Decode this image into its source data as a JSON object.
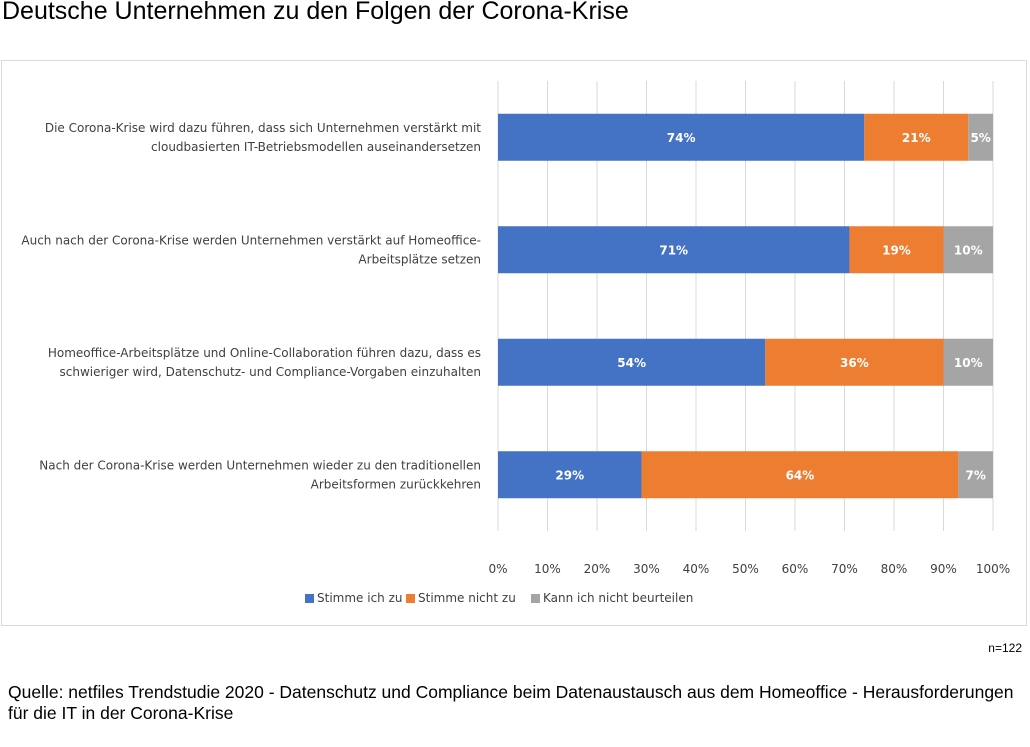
{
  "title": "Deutsche Unternehmen zu den Folgen der Corona-Krise",
  "note": "n=122",
  "source": "Quelle: netfiles Trendstudie 2020 - Datenschutz und Compliance beim Datenaustausch aus dem Homeoffice - Herausforderungen für die IT in der Corona-Krise",
  "chart_data": {
    "type": "bar",
    "orientation": "horizontal",
    "stacked": "percent",
    "categories": [
      [
        "Die Corona-Krise wird dazu führen, dass sich Unternehmen verstärkt mit",
        "cloudbasierten IT-Betriebsmodellen auseinandersetzen"
      ],
      [
        "Auch nach der Corona-Krise werden Unternehmen verstärkt auf Homeoffice-",
        "Arbeitsplätze setzen"
      ],
      [
        "Homeoffice-Arbeitsplätze und Online-Collaboration führen dazu, dass es",
        "schwieriger wird, Datenschutz- und Compliance-Vorgaben einzuhalten"
      ],
      [
        "Nach der Corona-Krise werden Unternehmen wieder zu den traditionellen",
        "Arbeitsformen zurückkehren"
      ]
    ],
    "series": [
      {
        "name": "Stimme ich zu",
        "color": "#4472c4",
        "values": [
          74,
          71,
          54,
          29
        ]
      },
      {
        "name": "Stimme nicht zu",
        "color": "#ed7d31",
        "values": [
          21,
          19,
          36,
          64
        ]
      },
      {
        "name": "Kann ich nicht beurteilen",
        "color": "#a5a5a5",
        "values": [
          5,
          10,
          10,
          7
        ]
      }
    ],
    "xlim": [
      0,
      100
    ],
    "xticks": [
      "0%",
      "10%",
      "20%",
      "30%",
      "40%",
      "50%",
      "60%",
      "70%",
      "80%",
      "90%",
      "100%"
    ],
    "grid": true,
    "legend": "bottom"
  }
}
